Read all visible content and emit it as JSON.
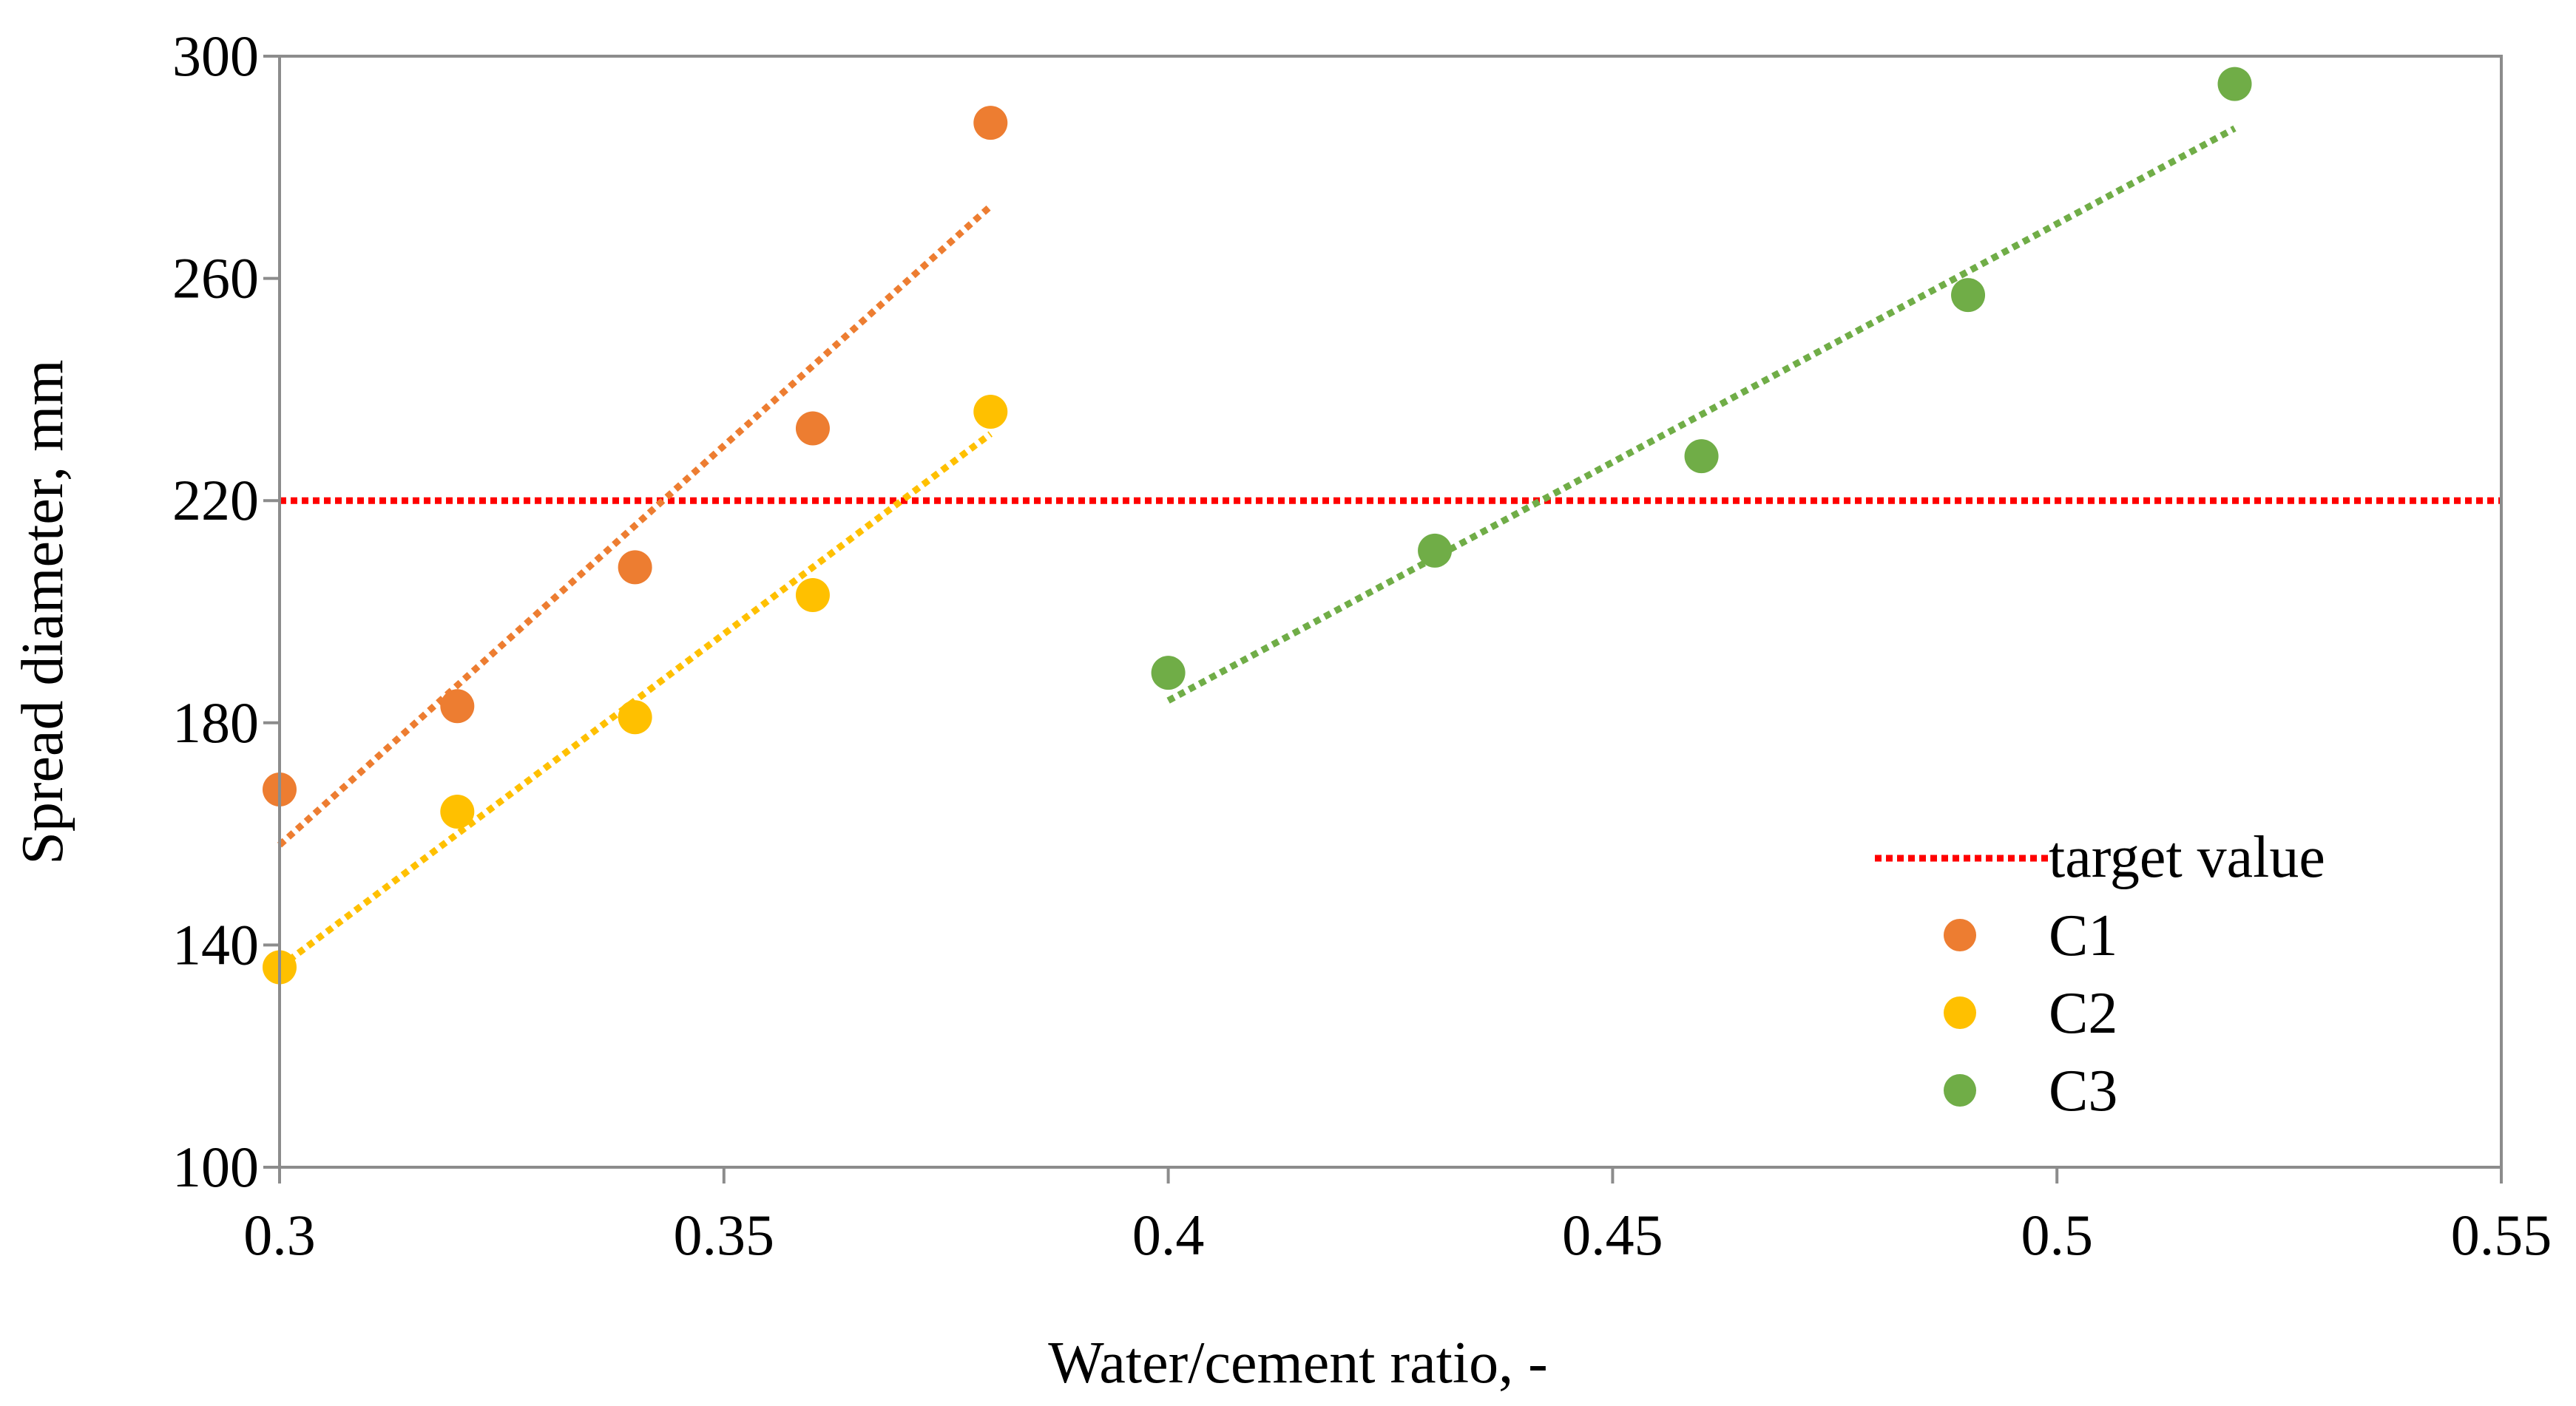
{
  "chart_data": {
    "type": "scatter",
    "title": "",
    "xlabel": "Water/cement ratio, -",
    "ylabel": "Spread diameter, mm",
    "xlim": [
      0.3,
      0.55
    ],
    "ylim": [
      100,
      300
    ],
    "x_ticks": [
      0.3,
      0.35,
      0.4,
      0.45,
      0.5,
      0.55
    ],
    "x_tick_labels": [
      "0.3",
      "0.35",
      "0.4",
      "0.45",
      "0.5",
      "0.55"
    ],
    "y_ticks": [
      100,
      140,
      180,
      220,
      260,
      300
    ],
    "y_tick_labels": [
      "100",
      "140",
      "180",
      "220",
      "260",
      "300"
    ],
    "grid": false,
    "legend_position": "bottom-right",
    "target_line": {
      "name": "target value",
      "value": 220,
      "color": "#ff0000"
    },
    "series": [
      {
        "name": "C1",
        "color": "#ed7d31",
        "x": [
          0.3,
          0.32,
          0.34,
          0.36,
          0.38
        ],
        "y": [
          168,
          183,
          208,
          233,
          288
        ],
        "trendline": {
          "x": [
            0.3,
            0.38
          ],
          "y": [
            158,
            273
          ]
        }
      },
      {
        "name": "C2",
        "color": "#ffc000",
        "x": [
          0.3,
          0.32,
          0.34,
          0.36,
          0.38
        ],
        "y": [
          136,
          164,
          181,
          203,
          236
        ],
        "trendline": {
          "x": [
            0.3,
            0.38
          ],
          "y": [
            136,
            232
          ]
        }
      },
      {
        "name": "C3",
        "color": "#70ad47",
        "x": [
          0.4,
          0.43,
          0.46,
          0.49,
          0.52
        ],
        "y": [
          189,
          211,
          228,
          257,
          295
        ],
        "trendline": {
          "x": [
            0.4,
            0.52
          ],
          "y": [
            184,
            287
          ]
        }
      }
    ]
  }
}
